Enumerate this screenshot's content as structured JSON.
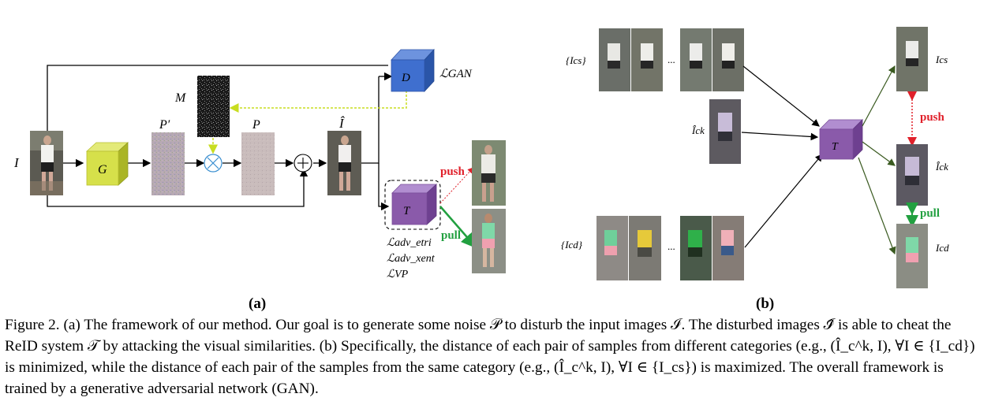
{
  "panel_a": {
    "label": "(a)",
    "input_label": "I",
    "generator_label": "G",
    "mask_label": "M",
    "p_prime_label": "P′",
    "p_label": "P",
    "i_hat_label": "Î",
    "discriminator_label": "D",
    "loss_gan_label": "ℒGAN",
    "reid_label": "T",
    "push_label": "push",
    "pull_label": "pull",
    "losses": [
      "ℒadv_etri",
      "ℒadv_xent",
      "ℒVP"
    ]
  },
  "panel_b": {
    "label": "(b)",
    "set_cs_label": "{Ics}",
    "ic_k_label": "Îck",
    "set_cd_label": "{Icd}",
    "reid_label": "T",
    "out_cs_label": "Ics",
    "out_ick_label": "Îck",
    "out_cd_label": "Icd",
    "push_label": "push",
    "pull_label": "pull",
    "ellipsis": "..."
  },
  "caption": {
    "line1": "Figure 2. (a) The framework of our method. Our goal is to generate some noise 𝒫 to disturb the input images ℐ. The disturbed images ℐ̂",
    "line2": "is able to cheat the ReID system 𝒯 by attacking the visual similarities. (b) Specifically, the distance of each pair of samples from different",
    "line3": "categories (e.g., (Î_c^k, I), ∀I ∈ {I_cd}) is minimized, while the distance of each pair of the samples from the same category (e.g., (Î_c^k, I),",
    "line4": "∀I ∈ {I_cs}) is maximized. The overall framework is trained by a generative adversarial network (GAN)."
  },
  "colors": {
    "generator": "#d6e04a",
    "discriminator": "#3f6fcf",
    "reid": "#8a5aaa",
    "push": "#e0202a",
    "pull": "#22a040",
    "arrow": "#000000",
    "dashed_feedback": "#c8dd20",
    "panel_b_arrow": "#3a5a20"
  }
}
